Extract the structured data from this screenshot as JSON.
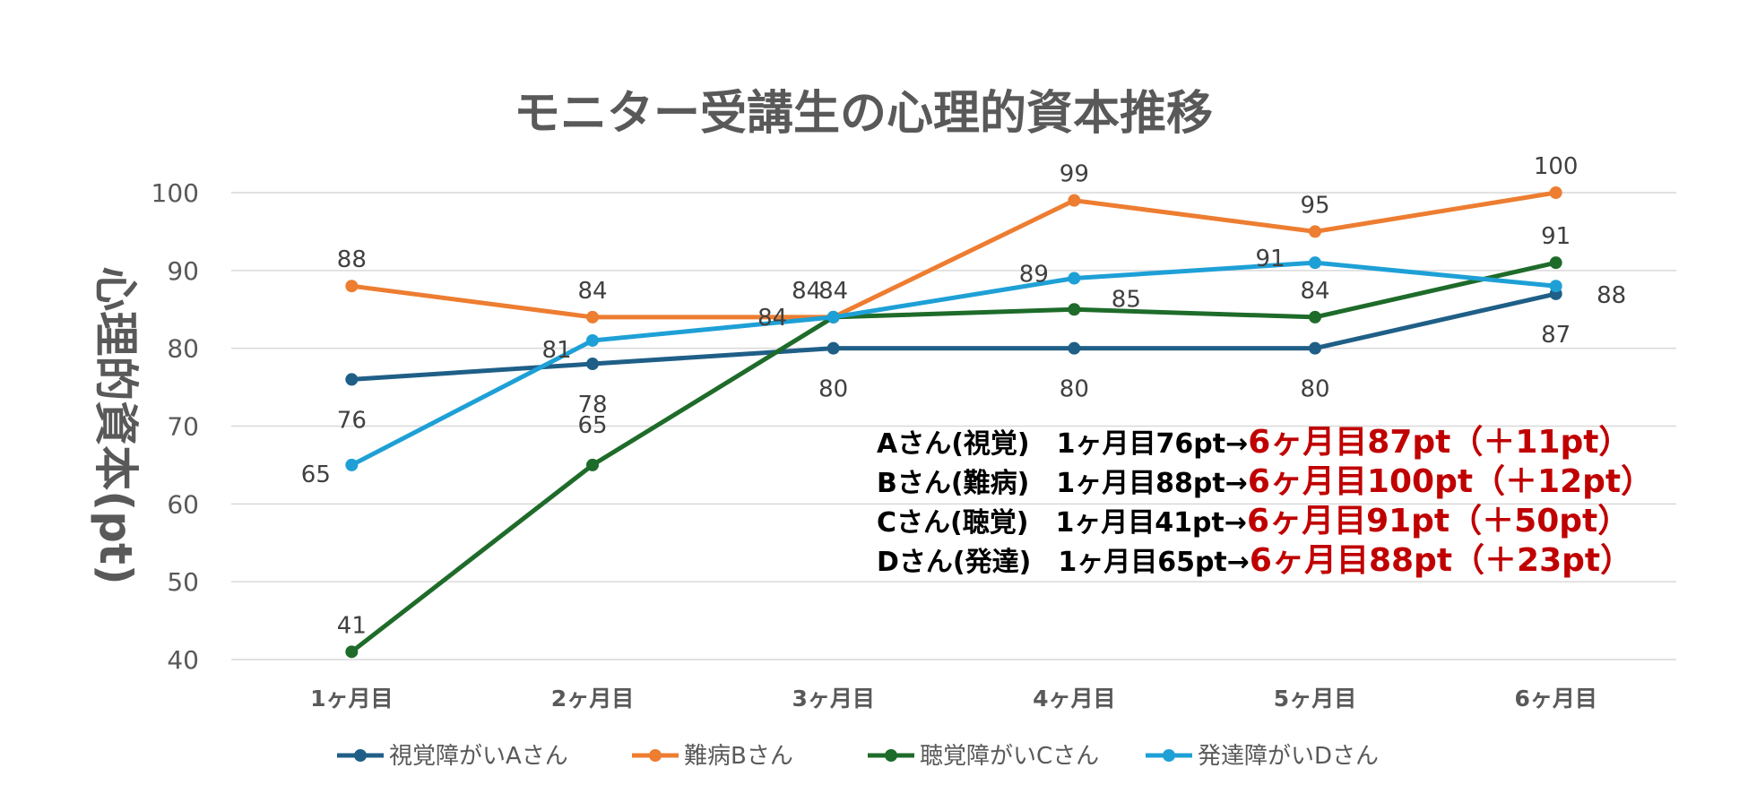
{
  "chart_data": {
    "type": "line",
    "title": "モニター受講生の心理的資本推移",
    "ylabel": "心理的資本(pt)",
    "xlabel": "",
    "categories": [
      "1ヶ月目",
      "2ヶ月目",
      "3ヶ月目",
      "4ヶ月目",
      "5ヶ月目",
      "6ヶ月目"
    ],
    "y_ticks": [
      "40",
      "50",
      "60",
      "70",
      "80",
      "90",
      "100"
    ],
    "ylim": [
      40,
      100
    ],
    "grid": true,
    "legend_position": "bottom",
    "series": [
      {
        "name": "視覚障がいAさん",
        "color": "#1f5f87",
        "values": [
          76,
          78,
          80,
          80,
          80,
          87
        ]
      },
      {
        "name": "難病Bさん",
        "color": "#ed7d31",
        "values": [
          88,
          84,
          84,
          99,
          95,
          100
        ]
      },
      {
        "name": "聴覚障がいCさん",
        "color": "#1e6b2a",
        "values": [
          41,
          65,
          84,
          85,
          84,
          91
        ]
      },
      {
        "name": "発達障がいDさん",
        "color": "#1ea0d6",
        "values": [
          65,
          81,
          84,
          89,
          91,
          88
        ]
      }
    ],
    "annotations": [
      {
        "before": "Aさん(視覚)　1ヶ月目76pt→",
        "after": "6ヶ月目87pt（＋11pt）"
      },
      {
        "before": "Bさん(難病)　1ヶ月目88pt→",
        "after": "6ヶ月目100pt（＋12pt）"
      },
      {
        "before": "Cさん(聴覚)　1ヶ月目41pt→",
        "after": "6ヶ月目91pt（＋50pt）"
      },
      {
        "before": "Dさん(発達)　1ヶ月目65pt→",
        "after": "6ヶ月目88pt（＋23pt）"
      }
    ]
  }
}
